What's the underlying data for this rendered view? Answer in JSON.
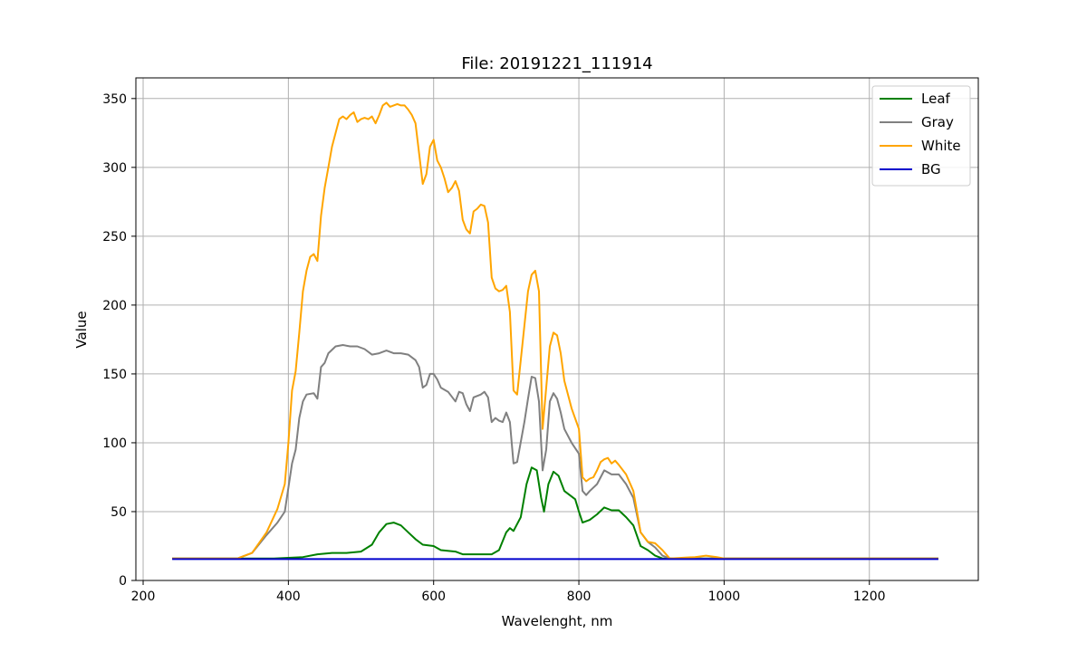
{
  "chart_data": {
    "type": "line",
    "title": "File: 20191221_111914",
    "xlabel": "Wavelenght, nm",
    "ylabel": "Value",
    "xlim": [
      190,
      1350
    ],
    "ylim": [
      0,
      365
    ],
    "xticks": [
      200,
      400,
      600,
      800,
      1000,
      1200
    ],
    "yticks": [
      0,
      50,
      100,
      150,
      200,
      250,
      300,
      350
    ],
    "grid": true,
    "legend_position": "top-right",
    "series": [
      {
        "name": "Leaf",
        "color": "#008000",
        "points": [
          [
            240,
            16
          ],
          [
            340,
            16
          ],
          [
            380,
            16
          ],
          [
            420,
            17
          ],
          [
            440,
            19
          ],
          [
            460,
            20
          ],
          [
            480,
            20
          ],
          [
            500,
            21
          ],
          [
            515,
            26
          ],
          [
            525,
            35
          ],
          [
            535,
            41
          ],
          [
            545,
            42
          ],
          [
            555,
            40
          ],
          [
            565,
            35
          ],
          [
            575,
            30
          ],
          [
            585,
            26
          ],
          [
            600,
            25
          ],
          [
            610,
            22
          ],
          [
            630,
            21
          ],
          [
            640,
            19
          ],
          [
            660,
            19
          ],
          [
            680,
            19
          ],
          [
            690,
            22
          ],
          [
            700,
            35
          ],
          [
            705,
            38
          ],
          [
            710,
            36
          ],
          [
            720,
            46
          ],
          [
            728,
            70
          ],
          [
            735,
            82
          ],
          [
            742,
            80
          ],
          [
            748,
            60
          ],
          [
            752,
            50
          ],
          [
            758,
            70
          ],
          [
            765,
            79
          ],
          [
            772,
            76
          ],
          [
            780,
            65
          ],
          [
            795,
            59
          ],
          [
            800,
            50
          ],
          [
            805,
            42
          ],
          [
            815,
            44
          ],
          [
            825,
            48
          ],
          [
            835,
            53
          ],
          [
            845,
            51
          ],
          [
            855,
            51
          ],
          [
            865,
            46
          ],
          [
            875,
            40
          ],
          [
            885,
            25
          ],
          [
            895,
            22
          ],
          [
            905,
            18
          ],
          [
            915,
            16
          ],
          [
            960,
            16
          ],
          [
            980,
            16
          ],
          [
            1000,
            16
          ],
          [
            1100,
            16
          ],
          [
            1200,
            16
          ],
          [
            1295,
            16
          ]
        ]
      },
      {
        "name": "Gray",
        "color": "#808080",
        "points": [
          [
            240,
            16
          ],
          [
            330,
            16
          ],
          [
            350,
            20
          ],
          [
            370,
            33
          ],
          [
            385,
            42
          ],
          [
            395,
            50
          ],
          [
            405,
            85
          ],
          [
            410,
            95
          ],
          [
            415,
            118
          ],
          [
            420,
            130
          ],
          [
            425,
            135
          ],
          [
            435,
            136
          ],
          [
            440,
            132
          ],
          [
            445,
            155
          ],
          [
            450,
            158
          ],
          [
            455,
            165
          ],
          [
            465,
            170
          ],
          [
            475,
            171
          ],
          [
            485,
            170
          ],
          [
            495,
            170
          ],
          [
            505,
            168
          ],
          [
            515,
            164
          ],
          [
            525,
            165
          ],
          [
            535,
            167
          ],
          [
            545,
            165
          ],
          [
            555,
            165
          ],
          [
            565,
            164
          ],
          [
            575,
            160
          ],
          [
            580,
            155
          ],
          [
            585,
            140
          ],
          [
            590,
            142
          ],
          [
            595,
            150
          ],
          [
            600,
            150
          ],
          [
            605,
            146
          ],
          [
            610,
            140
          ],
          [
            620,
            137
          ],
          [
            630,
            130
          ],
          [
            635,
            137
          ],
          [
            640,
            136
          ],
          [
            645,
            128
          ],
          [
            650,
            123
          ],
          [
            655,
            133
          ],
          [
            665,
            135
          ],
          [
            670,
            137
          ],
          [
            675,
            133
          ],
          [
            680,
            115
          ],
          [
            685,
            118
          ],
          [
            690,
            116
          ],
          [
            695,
            115
          ],
          [
            700,
            122
          ],
          [
            705,
            115
          ],
          [
            710,
            85
          ],
          [
            715,
            86
          ],
          [
            725,
            115
          ],
          [
            730,
            132
          ],
          [
            735,
            148
          ],
          [
            740,
            147
          ],
          [
            745,
            130
          ],
          [
            750,
            80
          ],
          [
            755,
            95
          ],
          [
            760,
            130
          ],
          [
            765,
            136
          ],
          [
            770,
            132
          ],
          [
            775,
            122
          ],
          [
            780,
            110
          ],
          [
            790,
            100
          ],
          [
            800,
            92
          ],
          [
            805,
            65
          ],
          [
            810,
            62
          ],
          [
            815,
            65
          ],
          [
            825,
            70
          ],
          [
            835,
            80
          ],
          [
            845,
            77
          ],
          [
            855,
            77
          ],
          [
            865,
            70
          ],
          [
            875,
            60
          ],
          [
            885,
            35
          ],
          [
            895,
            28
          ],
          [
            905,
            24
          ],
          [
            915,
            18
          ],
          [
            925,
            16
          ],
          [
            960,
            16
          ],
          [
            1000,
            16
          ],
          [
            1100,
            16
          ],
          [
            1200,
            16
          ],
          [
            1295,
            16
          ]
        ]
      },
      {
        "name": "White",
        "color": "#ffa500",
        "points": [
          [
            240,
            16
          ],
          [
            330,
            16
          ],
          [
            350,
            20
          ],
          [
            370,
            35
          ],
          [
            385,
            52
          ],
          [
            395,
            70
          ],
          [
            400,
            100
          ],
          [
            405,
            138
          ],
          [
            410,
            152
          ],
          [
            415,
            180
          ],
          [
            420,
            210
          ],
          [
            425,
            225
          ],
          [
            430,
            235
          ],
          [
            435,
            237
          ],
          [
            440,
            232
          ],
          [
            445,
            265
          ],
          [
            450,
            285
          ],
          [
            455,
            300
          ],
          [
            460,
            315
          ],
          [
            465,
            325
          ],
          [
            470,
            335
          ],
          [
            475,
            337
          ],
          [
            480,
            335
          ],
          [
            485,
            338
          ],
          [
            490,
            340
          ],
          [
            495,
            333
          ],
          [
            500,
            335
          ],
          [
            505,
            336
          ],
          [
            510,
            335
          ],
          [
            515,
            337
          ],
          [
            520,
            332
          ],
          [
            525,
            338
          ],
          [
            530,
            345
          ],
          [
            535,
            347
          ],
          [
            540,
            344
          ],
          [
            545,
            345
          ],
          [
            550,
            346
          ],
          [
            555,
            345
          ],
          [
            560,
            345
          ],
          [
            565,
            342
          ],
          [
            570,
            338
          ],
          [
            575,
            332
          ],
          [
            580,
            310
          ],
          [
            585,
            288
          ],
          [
            590,
            295
          ],
          [
            595,
            315
          ],
          [
            600,
            320
          ],
          [
            605,
            305
          ],
          [
            610,
            300
          ],
          [
            615,
            292
          ],
          [
            620,
            282
          ],
          [
            625,
            285
          ],
          [
            630,
            290
          ],
          [
            635,
            283
          ],
          [
            640,
            262
          ],
          [
            645,
            255
          ],
          [
            650,
            252
          ],
          [
            655,
            268
          ],
          [
            660,
            270
          ],
          [
            665,
            273
          ],
          [
            670,
            272
          ],
          [
            675,
            260
          ],
          [
            680,
            220
          ],
          [
            685,
            212
          ],
          [
            690,
            210
          ],
          [
            695,
            211
          ],
          [
            700,
            214
          ],
          [
            705,
            195
          ],
          [
            710,
            138
          ],
          [
            715,
            135
          ],
          [
            720,
            160
          ],
          [
            725,
            185
          ],
          [
            730,
            210
          ],
          [
            735,
            222
          ],
          [
            740,
            225
          ],
          [
            745,
            210
          ],
          [
            750,
            110
          ],
          [
            755,
            140
          ],
          [
            760,
            170
          ],
          [
            765,
            180
          ],
          [
            770,
            178
          ],
          [
            775,
            165
          ],
          [
            780,
            145
          ],
          [
            790,
            125
          ],
          [
            800,
            110
          ],
          [
            805,
            75
          ],
          [
            810,
            72
          ],
          [
            815,
            74
          ],
          [
            820,
            75
          ],
          [
            825,
            80
          ],
          [
            830,
            86
          ],
          [
            835,
            88
          ],
          [
            840,
            89
          ],
          [
            845,
            85
          ],
          [
            850,
            87
          ],
          [
            855,
            84
          ],
          [
            865,
            77
          ],
          [
            875,
            65
          ],
          [
            885,
            35
          ],
          [
            895,
            28
          ],
          [
            905,
            27
          ],
          [
            915,
            22
          ],
          [
            925,
            16
          ],
          [
            960,
            17
          ],
          [
            975,
            18
          ],
          [
            990,
            17
          ],
          [
            1000,
            16
          ],
          [
            1100,
            16
          ],
          [
            1200,
            16
          ],
          [
            1295,
            16
          ]
        ]
      },
      {
        "name": "BG",
        "color": "#0000cc",
        "points": [
          [
            240,
            15.5
          ],
          [
            1295,
            15.5
          ]
        ]
      }
    ]
  }
}
